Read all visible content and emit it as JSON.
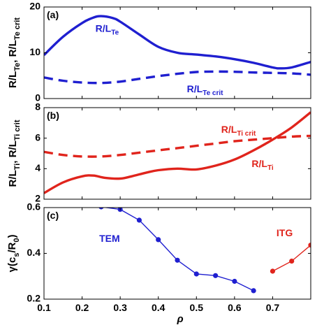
{
  "chart_data": [
    {
      "type": "line",
      "panel_label": "(a)",
      "ylabel": {
        "parts": [
          [
            "R/L",
            ""
          ],
          [
            "Te",
            "sub"
          ],
          [
            ", R/L",
            ""
          ],
          [
            "Te crit",
            "sub"
          ]
        ]
      },
      "xlim": [
        0.1,
        0.8
      ],
      "ylim": [
        0,
        20
      ],
      "yticks": [
        "0",
        "10",
        "20"
      ],
      "series": [
        {
          "name": "R/L_Te",
          "color": "#1f1fd0",
          "style": "solid",
          "x": [
            0.1,
            0.15,
            0.2,
            0.23,
            0.25,
            0.28,
            0.3,
            0.35,
            0.4,
            0.45,
            0.5,
            0.55,
            0.6,
            0.65,
            0.7,
            0.72,
            0.75,
            0.8
          ],
          "y": [
            9.5,
            13.5,
            16.5,
            17.7,
            18.0,
            17.6,
            16.8,
            14.0,
            11.3,
            10.0,
            9.6,
            9.2,
            8.6,
            7.8,
            6.8,
            6.6,
            6.8,
            8.0
          ]
        },
        {
          "name": "R/L_Te crit",
          "color": "#1f1fd0",
          "style": "dashed",
          "x": [
            0.1,
            0.15,
            0.2,
            0.25,
            0.3,
            0.35,
            0.4,
            0.45,
            0.5,
            0.55,
            0.6,
            0.65,
            0.7,
            0.75,
            0.8
          ],
          "y": [
            4.6,
            3.9,
            3.5,
            3.4,
            3.7,
            4.3,
            4.9,
            5.4,
            5.8,
            5.9,
            5.85,
            5.7,
            5.6,
            5.5,
            5.2
          ]
        }
      ],
      "annotations": [
        {
          "parts": [
            [
              "R/L",
              ""
            ],
            [
              "Te",
              "sub"
            ]
          ],
          "x": 0.235,
          "y": 14.6,
          "color": "#1f1fd0"
        },
        {
          "parts": [
            [
              "R/L",
              ""
            ],
            [
              "Te crit",
              "sub"
            ]
          ],
          "x": 0.475,
          "y": 1.4,
          "color": "#1f1fd0"
        }
      ]
    },
    {
      "type": "line",
      "panel_label": "(b)",
      "ylabel": {
        "parts": [
          [
            "R/L",
            ""
          ],
          [
            "Ti",
            "sub"
          ],
          [
            ", R/L",
            ""
          ],
          [
            "Ti crit",
            "sub"
          ]
        ]
      },
      "xlim": [
        0.1,
        0.8
      ],
      "ylim": [
        2,
        8
      ],
      "yticks": [
        "2",
        "4",
        "6",
        "8"
      ],
      "series": [
        {
          "name": "R/L_Ti",
          "color": "#e0241c",
          "style": "solid",
          "x": [
            0.1,
            0.15,
            0.2,
            0.23,
            0.26,
            0.3,
            0.33,
            0.37,
            0.4,
            0.45,
            0.5,
            0.55,
            0.6,
            0.65,
            0.7,
            0.75,
            0.8
          ],
          "y": [
            2.4,
            3.1,
            3.5,
            3.55,
            3.4,
            3.35,
            3.5,
            3.75,
            3.9,
            4.0,
            3.95,
            4.2,
            4.6,
            5.2,
            5.9,
            6.7,
            7.7
          ]
        },
        {
          "name": "R/L_Ti crit",
          "color": "#e0241c",
          "style": "dashed",
          "x": [
            0.1,
            0.15,
            0.2,
            0.25,
            0.3,
            0.35,
            0.4,
            0.45,
            0.5,
            0.55,
            0.6,
            0.65,
            0.7,
            0.75,
            0.8
          ],
          "y": [
            5.1,
            4.9,
            4.8,
            4.8,
            4.9,
            5.05,
            5.2,
            5.35,
            5.5,
            5.65,
            5.8,
            5.9,
            6.0,
            6.1,
            6.15
          ]
        }
      ],
      "annotations": [
        {
          "parts": [
            [
              "R/L",
              ""
            ],
            [
              "Ti crit",
              "sub"
            ]
          ],
          "x": 0.565,
          "y": 6.35,
          "color": "#e0241c"
        },
        {
          "parts": [
            [
              "R/L",
              ""
            ],
            [
              "Ti",
              "sub"
            ]
          ],
          "x": 0.645,
          "y": 4.1,
          "color": "#e0241c"
        }
      ]
    },
    {
      "type": "scatter",
      "panel_label": "(c)",
      "ylabel": {
        "parts": [
          [
            "γ(c",
            ""
          ],
          [
            "s",
            "sub"
          ],
          [
            "/R",
            ""
          ],
          [
            "0",
            "sub"
          ],
          [
            ")",
            ""
          ]
        ]
      },
      "xlabel": "ρ",
      "xlim": [
        0.1,
        0.8
      ],
      "ylim": [
        0.2,
        0.6
      ],
      "xticks": [
        "0.1",
        "0.2",
        "0.3",
        "0.4",
        "0.5",
        "0.6",
        "0.7"
      ],
      "yticks": [
        "0.2",
        "0.4",
        "0.6"
      ],
      "series": [
        {
          "name": "TEM",
          "color": "#1f1fd0",
          "style": "markers-line",
          "x": [
            0.25,
            0.3,
            0.35,
            0.4,
            0.45,
            0.5,
            0.55,
            0.6,
            0.65
          ],
          "y": [
            0.603,
            0.592,
            0.545,
            0.46,
            0.37,
            0.31,
            0.303,
            0.278,
            0.237
          ]
        },
        {
          "name": "ITG",
          "color": "#e0241c",
          "style": "markers-line",
          "x": [
            0.7,
            0.75,
            0.8
          ],
          "y": [
            0.322,
            0.366,
            0.436
          ]
        }
      ],
      "annotations": [
        {
          "parts": [
            [
              "TEM",
              ""
            ]
          ],
          "x": 0.245,
          "y": 0.45,
          "color": "#1f1fd0"
        },
        {
          "parts": [
            [
              "ITG",
              ""
            ]
          ],
          "x": 0.71,
          "y": 0.475,
          "color": "#e0241c"
        }
      ]
    }
  ]
}
